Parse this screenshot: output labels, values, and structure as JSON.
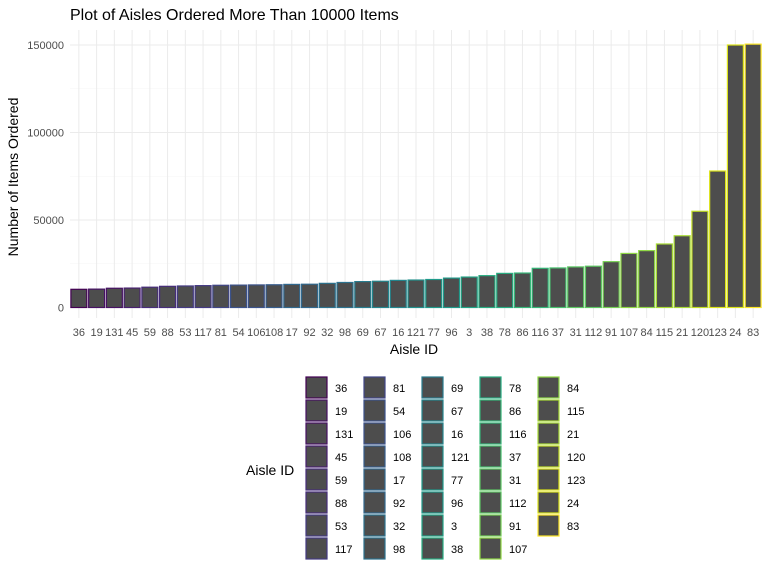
{
  "chart_data": {
    "type": "bar",
    "title": "Plot of Aisles Ordered More Than 10000 Items",
    "xlabel": "Aisle ID",
    "ylabel": "Number of Items Ordered",
    "legend_title": "Aisle ID",
    "legend_position": "bottom",
    "ylim": [
      0,
      155000
    ],
    "yticks": [
      0,
      50000,
      100000,
      150000
    ],
    "ytick_labels": [
      "0",
      "50000",
      "100000",
      "150000"
    ],
    "grid": true,
    "bar_fill": "#4d4d4d",
    "categories": [
      "36",
      "19",
      "131",
      "45",
      "59",
      "88",
      "53",
      "117",
      "81",
      "54",
      "106",
      "108",
      "17",
      "92",
      "32",
      "98",
      "69",
      "67",
      "16",
      "121",
      "77",
      "96",
      "3",
      "38",
      "78",
      "86",
      "116",
      "37",
      "31",
      "112",
      "91",
      "107",
      "84",
      "115",
      "21",
      "120",
      "123",
      "24",
      "83"
    ],
    "values": [
      10400,
      10500,
      11000,
      11100,
      11600,
      12100,
      12300,
      12500,
      12700,
      12800,
      12900,
      13000,
      13200,
      13300,
      13800,
      14300,
      14800,
      15000,
      15500,
      15700,
      16000,
      16800,
      17400,
      18200,
      19500,
      19700,
      22400,
      22600,
      23200,
      23600,
      26200,
      30900,
      32500,
      36300,
      41000,
      55000,
      78000,
      150000,
      150500
    ],
    "outline_colors": [
      "#440154",
      "#471164",
      "#481F70",
      "#472D7B",
      "#443A83",
      "#404688",
      "#3B528B",
      "#365D8D",
      "#31688E",
      "#2C728E",
      "#287C8E",
      "#24868E",
      "#21908C",
      "#1F9A8A",
      "#20A486",
      "#27AD81",
      "#35B779",
      "#47C16E",
      "#5DC863",
      "#75D054",
      "#8FD744",
      "#A8DB34",
      "#C2DF23",
      "#DCE318",
      "#FDE725"
    ]
  }
}
